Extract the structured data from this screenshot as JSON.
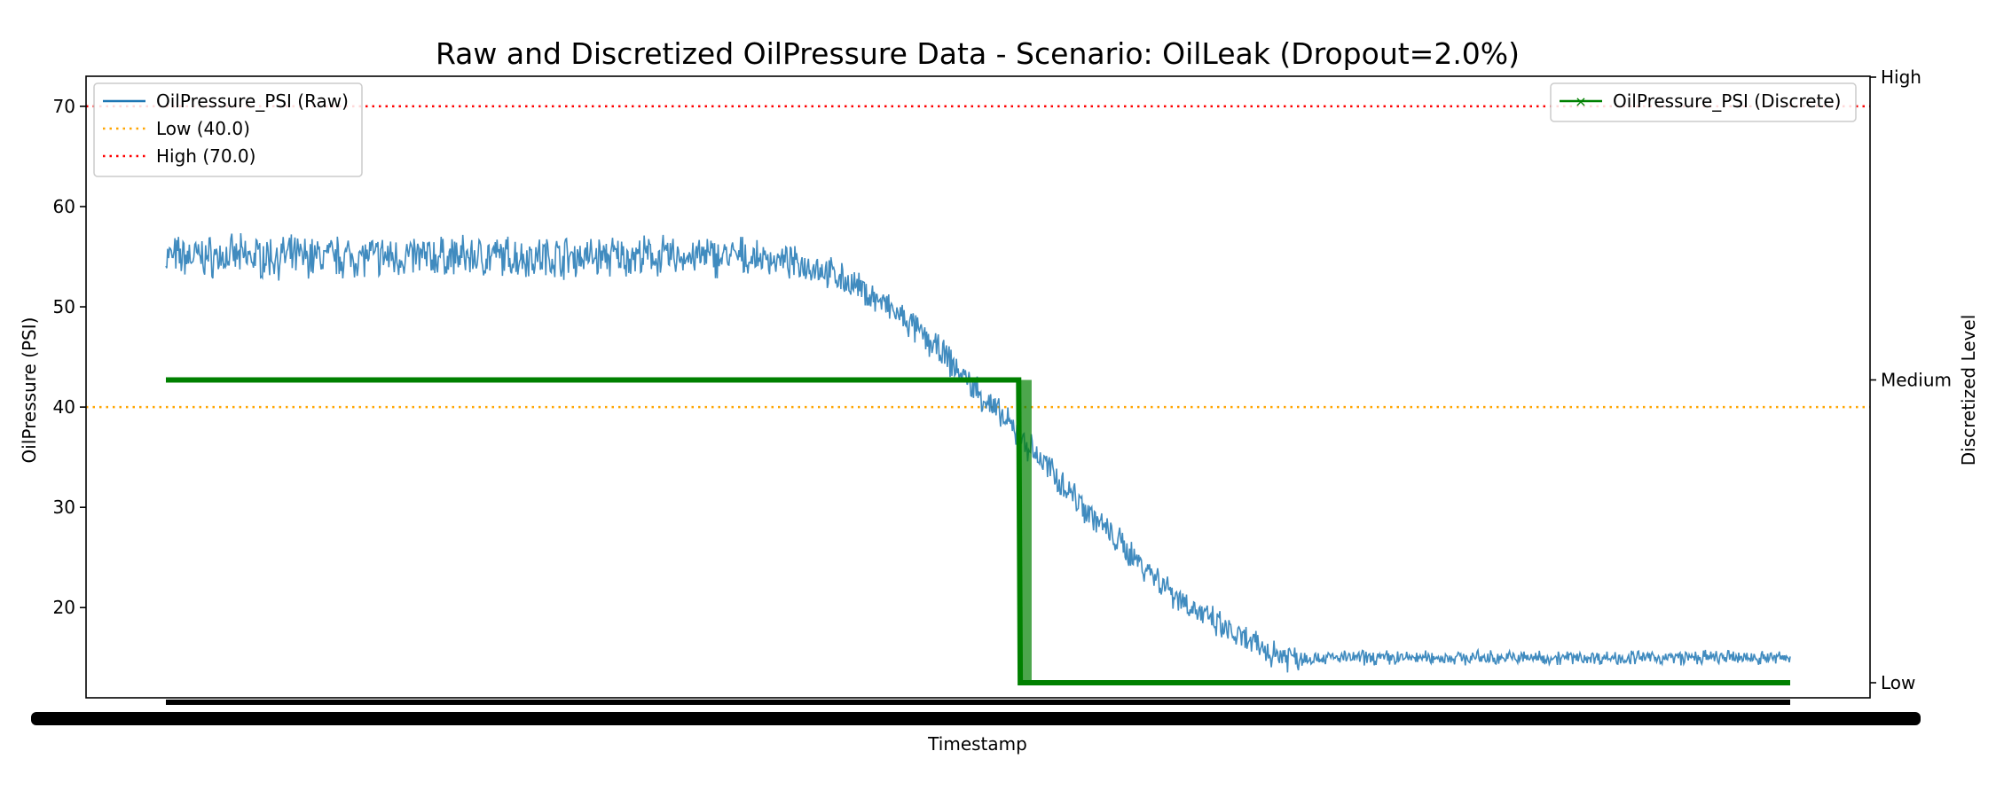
{
  "chart_data": {
    "type": "line",
    "title": "Raw and Discretized OilPressure Data - Scenario: OilLeak (Dropout=2.0%)",
    "xlabel": "Timestamp",
    "ylabel": "OilPressure (PSI)",
    "ylabel_right": "Discretized Level",
    "ylim": [
      11,
      73
    ],
    "yticks": [
      20,
      30,
      40,
      50,
      60,
      70
    ],
    "right_ticks": [
      "Low",
      "Medium",
      "High"
    ],
    "grid": false,
    "thresholds": [
      {
        "name": "Low (40.0)",
        "value": 40.0,
        "color": "#ffa500"
      },
      {
        "name": "High (70.0)",
        "value": 70.0,
        "color": "#ff0000"
      }
    ],
    "series": [
      {
        "name": "OilPressure_PSI (Raw)",
        "axis": "left",
        "color": "#1f77b4",
        "x": [
          0,
          10,
          20,
          30,
          35,
          37,
          40,
          42,
          44,
          46,
          48,
          50,
          52,
          54,
          56,
          58,
          60,
          62,
          64,
          66,
          68,
          70,
          72,
          74,
          76,
          80,
          85,
          90,
          100
        ],
        "y": [
          55,
          55,
          55,
          55,
          55,
          54.8,
          54,
          52.5,
          50.5,
          48,
          45,
          41.5,
          38,
          34.5,
          31,
          27.5,
          24.5,
          21.5,
          19,
          17,
          15.5,
          15,
          15,
          15,
          15,
          15,
          15,
          15,
          15
        ]
      },
      {
        "name": "OilPressure_PSI (Discrete)",
        "axis": "right",
        "color": "#008000",
        "x": [
          0,
          52.5,
          52.6,
          53.3,
          53.4,
          100
        ],
        "levels": [
          "Medium",
          "Medium",
          "Low",
          "Low",
          "Low",
          "Low"
        ]
      }
    ],
    "legend_left": "upper-left",
    "legend_right": "upper-right"
  }
}
